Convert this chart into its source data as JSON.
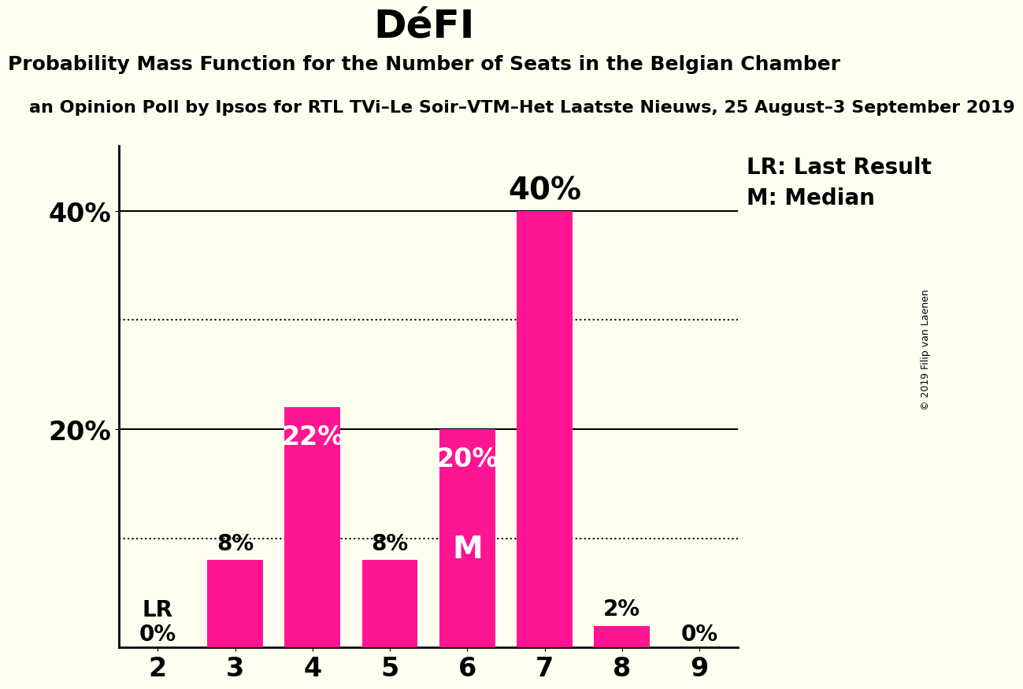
{
  "title": "DéFI",
  "subtitle": "Probability Mass Function for the Number of Seats in the Belgian Chamber",
  "source_line": "an Opinion Poll by Ipsos for RTL TVi–Le Soir–VTM–Het Laatste Nieuws, 25 August–3 September 2019",
  "copyright": "© 2019 Filip van Laenen",
  "categories": [
    2,
    3,
    4,
    5,
    6,
    7,
    8,
    9
  ],
  "values": [
    0,
    8,
    22,
    8,
    20,
    40,
    2,
    0
  ],
  "bar_color": "#FF1493",
  "background_color": "#FFFFF0",
  "label_outside_color": "#000000",
  "label_inside_color": "#FFFFFF",
  "ylim": [
    0,
    46
  ],
  "ytick_positions": [
    20,
    40
  ],
  "ytick_labels": [
    "20%",
    "40%"
  ],
  "grid_dotted": [
    10,
    30
  ],
  "grid_solid": [
    20,
    40
  ],
  "lr_seat": 2,
  "lr_label": "LR",
  "median_seat": 6,
  "median_label": "M",
  "annotation_lr": "LR: Last Result",
  "annotation_m": "M: Median",
  "title_fontsize": 36,
  "subtitle_fontsize": 18,
  "source_fontsize": 16,
  "bar_label_fontsize_small": 20,
  "bar_label_fontsize_large": 24,
  "bar_label_fontsize_xlarge": 28,
  "axis_tick_fontsize": 24,
  "legend_fontsize": 20,
  "copyright_fontsize": 9
}
